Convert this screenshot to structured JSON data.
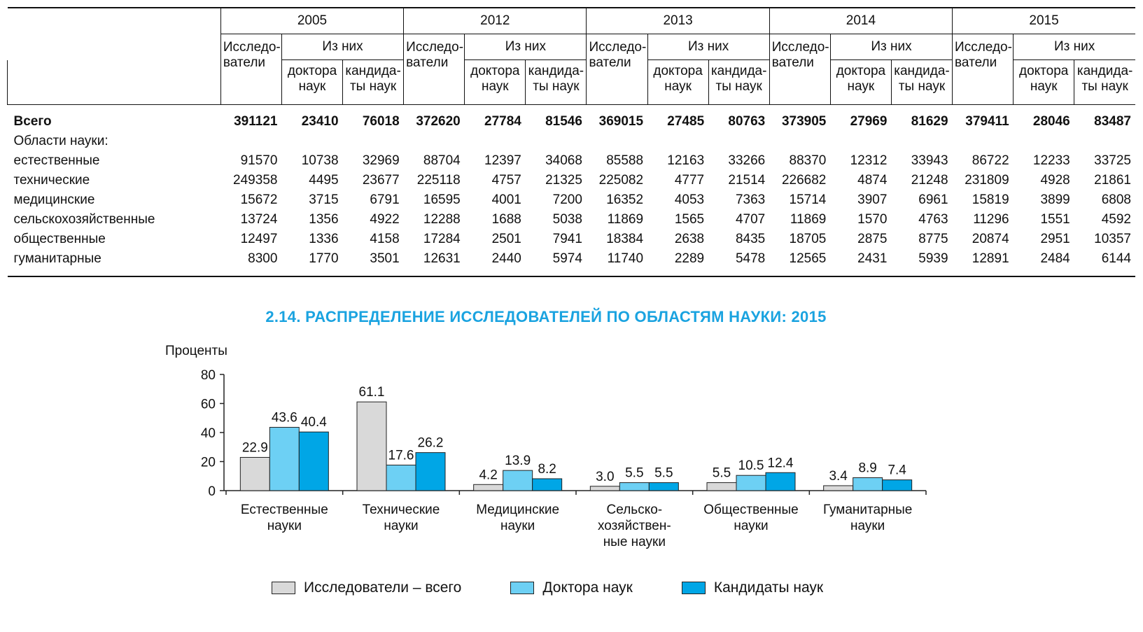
{
  "table": {
    "years": [
      "2005",
      "2012",
      "2013",
      "2014",
      "2015"
    ],
    "col_researchers": "Исследо-\nватели",
    "col_of_them": "Из них",
    "col_doctors": "доктора\nнаук",
    "col_candidates": "кандида-\nты наук",
    "rows": [
      {
        "label": "Всего",
        "bold": true,
        "values": [
          "391121",
          "23410",
          "76018",
          "372620",
          "27784",
          "81546",
          "369015",
          "27485",
          "80763",
          "373905",
          "27969",
          "81629",
          "379411",
          "28046",
          "83487"
        ]
      },
      {
        "label": "Области науки:",
        "bold": false,
        "values": [
          "",
          "",
          "",
          "",
          "",
          "",
          "",
          "",
          "",
          "",
          "",
          "",
          "",
          "",
          ""
        ]
      },
      {
        "label": "естественные",
        "bold": false,
        "values": [
          "91570",
          "10738",
          "32969",
          "88704",
          "12397",
          "34068",
          "85588",
          "12163",
          "33266",
          "88370",
          "12312",
          "33943",
          "86722",
          "12233",
          "33725"
        ]
      },
      {
        "label": "технические",
        "bold": false,
        "values": [
          "249358",
          "4495",
          "23677",
          "225118",
          "4757",
          "21325",
          "225082",
          "4777",
          "21514",
          "226682",
          "4874",
          "21248",
          "231809",
          "4928",
          "21861"
        ]
      },
      {
        "label": "медицинские",
        "bold": false,
        "values": [
          "15672",
          "3715",
          "6791",
          "16595",
          "4001",
          "7200",
          "16352",
          "4053",
          "7363",
          "15714",
          "3907",
          "6961",
          "15819",
          "3899",
          "6808"
        ]
      },
      {
        "label": "сельскохозяйственные",
        "bold": false,
        "values": [
          "13724",
          "1356",
          "4922",
          "12288",
          "1688",
          "5038",
          "11869",
          "1565",
          "4707",
          "11869",
          "1570",
          "4763",
          "11296",
          "1551",
          "4592"
        ]
      },
      {
        "label": "общественные",
        "bold": false,
        "values": [
          "12497",
          "1336",
          "4158",
          "17284",
          "2501",
          "7941",
          "18384",
          "2638",
          "8435",
          "18705",
          "2875",
          "8775",
          "20874",
          "2951",
          "10357"
        ]
      },
      {
        "label": "гуманитарные",
        "bold": false,
        "values": [
          "8300",
          "1770",
          "3501",
          "12631",
          "2440",
          "5974",
          "11740",
          "2289",
          "5478",
          "12565",
          "2431",
          "5939",
          "12891",
          "2484",
          "6144"
        ]
      }
    ]
  },
  "chart_data": {
    "type": "bar",
    "title": "2.14. РАСПРЕДЕЛЕНИЕ ИССЛЕДОВАТЕЛЕЙ ПО ОБЛАСТЯМ НАУКИ: 2015",
    "ylabel": "Проценты",
    "ylim": [
      0,
      80
    ],
    "yticks": [
      0,
      20,
      40,
      60,
      80
    ],
    "categories": [
      "Естественные\nнауки",
      "Технические\nнауки",
      "Медицинские\nнауки",
      "Сельско-\nхозяйствен-\nные науки",
      "Общественные\nнауки",
      "Гуманитарные\nнауки"
    ],
    "series": [
      {
        "name": "Исследователи – всего",
        "color": "#d9d9d9",
        "values": [
          22.9,
          61.1,
          4.2,
          3.0,
          5.5,
          3.4
        ]
      },
      {
        "name": "Доктора наук",
        "color": "#6dd0f4",
        "values": [
          43.6,
          17.6,
          13.9,
          5.5,
          10.5,
          8.9
        ]
      },
      {
        "name": "Кандидаты наук",
        "color": "#00a6e6",
        "values": [
          40.4,
          26.2,
          8.2,
          5.5,
          12.4,
          7.4
        ]
      }
    ],
    "grid": false,
    "legend_position": "bottom"
  }
}
